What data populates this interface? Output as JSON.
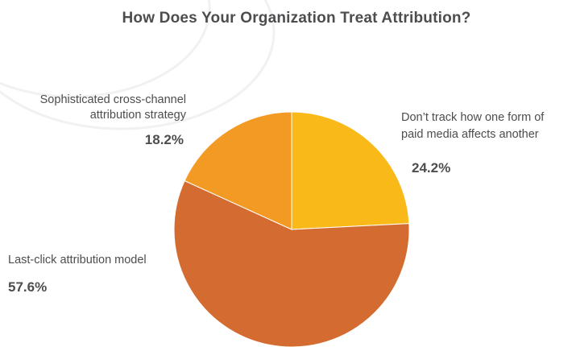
{
  "chart_data": {
    "type": "pie",
    "title": "How Does Your Organization Treat Attribution?",
    "slices": [
      {
        "name": "dont-track",
        "label_line1": "Don’t track how one form of",
        "label_line2": "paid media affects another",
        "value": 24.2,
        "value_label": "24.2%",
        "color": "#f9b918"
      },
      {
        "name": "last-click",
        "label_line1": "Last-click attribution  model",
        "label_line2": "",
        "value": 57.6,
        "value_label": "57.6%",
        "color": "#d46c31"
      },
      {
        "name": "sophisticated",
        "label_line1": "Sophisticated cross-channel",
        "label_line2": "attribution strategy",
        "value": 18.2,
        "value_label": "18.2%",
        "color": "#f39a24"
      }
    ]
  }
}
